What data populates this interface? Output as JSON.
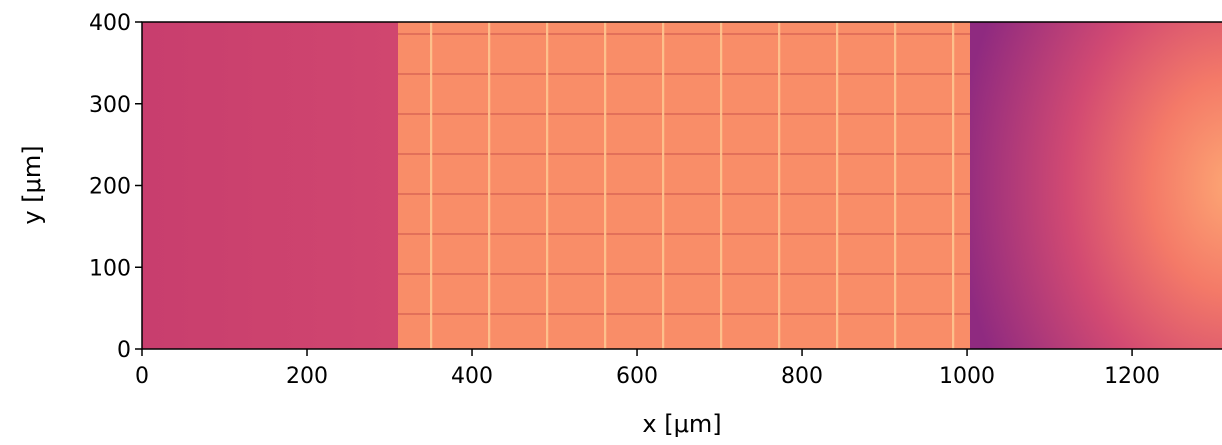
{
  "chart_data": {
    "type": "image",
    "x_label": "x [μm]",
    "y_label": "y [μm]",
    "xlim": [
      0,
      1309
    ],
    "ylim": [
      0,
      400
    ],
    "xticks": [
      0,
      200,
      400,
      600,
      800,
      1000,
      1200
    ],
    "yticks": [
      0,
      100,
      200,
      300,
      400
    ]
  }
}
